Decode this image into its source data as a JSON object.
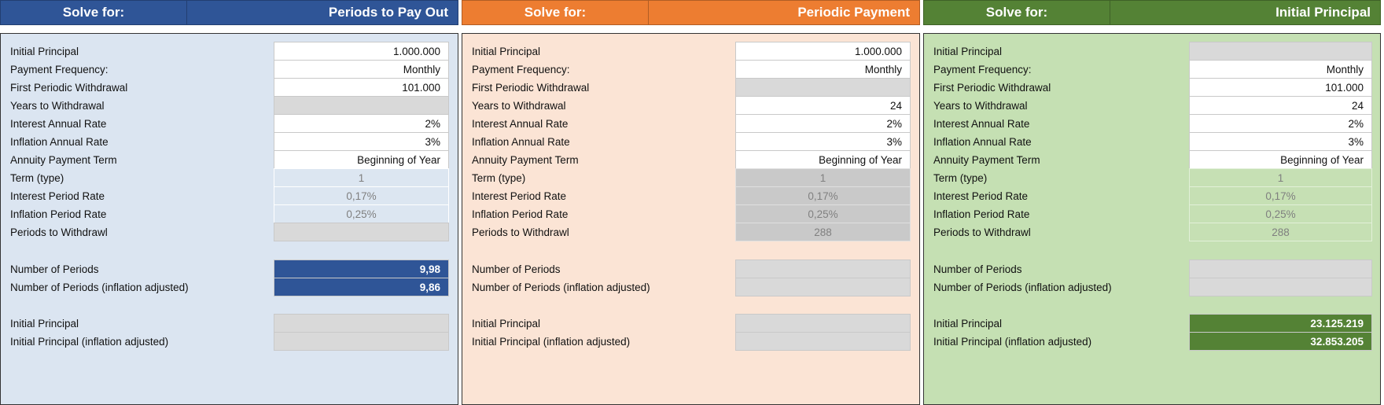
{
  "panels": [
    {
      "solve_label": "Solve for:",
      "solve_target": "Periods to Pay Out",
      "rows": [
        {
          "label": "Initial Principal",
          "value": "1.000.000",
          "kind": "input"
        },
        {
          "label": "Payment Frequency:",
          "value": "Monthly",
          "kind": "input"
        },
        {
          "label": "First Periodic Withdrawal",
          "value": "101.000",
          "kind": "input"
        },
        {
          "label": "Years to Withdrawal",
          "value": "",
          "kind": "blank"
        },
        {
          "label": "Interest Annual Rate",
          "value": "2%",
          "kind": "input"
        },
        {
          "label": "Inflation Annual Rate",
          "value": "3%",
          "kind": "input"
        },
        {
          "label": "Annuity Payment Term",
          "value": "Beginning of Year",
          "kind": "input"
        },
        {
          "label": "Term (type)",
          "value": "1",
          "kind": "calc"
        },
        {
          "label": "Interest Period Rate",
          "value": "0,17%",
          "kind": "calc"
        },
        {
          "label": "Inflation Period Rate",
          "value": "0,25%",
          "kind": "calc"
        },
        {
          "label": "Periods to Withdrawl",
          "value": "",
          "kind": "blank"
        },
        {
          "label": "Number of Periods",
          "value": "9,98",
          "kind": "res"
        },
        {
          "label": "Number of Periods (inflation adjusted)",
          "value": "9,86",
          "kind": "res"
        },
        {
          "label": "Initial Principal",
          "value": "",
          "kind": "blank"
        },
        {
          "label": "Initial Principal (inflation adjusted)",
          "value": "",
          "kind": "blank"
        }
      ]
    },
    {
      "solve_label": "Solve for:",
      "solve_target": "Periodic Payment",
      "rows": [
        {
          "label": "Initial Principal",
          "value": "1.000.000",
          "kind": "input"
        },
        {
          "label": "Payment Frequency:",
          "value": "Monthly",
          "kind": "input"
        },
        {
          "label": "First Periodic Withdrawal",
          "value": "",
          "kind": "blank"
        },
        {
          "label": "Years to Withdrawal",
          "value": "24",
          "kind": "input"
        },
        {
          "label": "Interest Annual Rate",
          "value": "2%",
          "kind": "input"
        },
        {
          "label": "Inflation Annual Rate",
          "value": "3%",
          "kind": "input"
        },
        {
          "label": "Annuity Payment Term",
          "value": "Beginning of Year",
          "kind": "input"
        },
        {
          "label": "Term (type)",
          "value": "1",
          "kind": "calc"
        },
        {
          "label": "Interest Period Rate",
          "value": "0,17%",
          "kind": "calc"
        },
        {
          "label": "Inflation Period Rate",
          "value": "0,25%",
          "kind": "calc"
        },
        {
          "label": "Periods to Withdrawl",
          "value": "288",
          "kind": "calc"
        },
        {
          "label": "Number of Periods",
          "value": "",
          "kind": "blank"
        },
        {
          "label": "Number of Periods (inflation adjusted)",
          "value": "",
          "kind": "blank"
        },
        {
          "label": "Initial Principal",
          "value": "",
          "kind": "blank"
        },
        {
          "label": "Initial Principal (inflation adjusted)",
          "value": "",
          "kind": "blank"
        }
      ]
    },
    {
      "solve_label": "Solve for:",
      "solve_target": "Initial Principal",
      "rows": [
        {
          "label": "Initial Principal",
          "value": "",
          "kind": "blank"
        },
        {
          "label": "Payment Frequency:",
          "value": "Monthly",
          "kind": "input"
        },
        {
          "label": "First Periodic Withdrawal",
          "value": "101.000",
          "kind": "input"
        },
        {
          "label": "Years to Withdrawal",
          "value": "24",
          "kind": "input"
        },
        {
          "label": "Interest Annual Rate",
          "value": "2%",
          "kind": "input"
        },
        {
          "label": "Inflation Annual Rate",
          "value": "3%",
          "kind": "input"
        },
        {
          "label": "Annuity Payment Term",
          "value": "Beginning of Year",
          "kind": "input"
        },
        {
          "label": "Term (type)",
          "value": "1",
          "kind": "calc"
        },
        {
          "label": "Interest Period Rate",
          "value": "0,17%",
          "kind": "calc"
        },
        {
          "label": "Inflation Period Rate",
          "value": "0,25%",
          "kind": "calc"
        },
        {
          "label": "Periods to Withdrawl",
          "value": "288",
          "kind": "calc"
        },
        {
          "label": "Number of Periods",
          "value": "",
          "kind": "blank"
        },
        {
          "label": "Number of Periods (inflation adjusted)",
          "value": "",
          "kind": "blank"
        },
        {
          "label": "Initial Principal",
          "value": "23.125.219",
          "kind": "res"
        },
        {
          "label": "Initial Principal (inflation adjusted)",
          "value": "32.853.205",
          "kind": "res"
        }
      ]
    }
  ]
}
